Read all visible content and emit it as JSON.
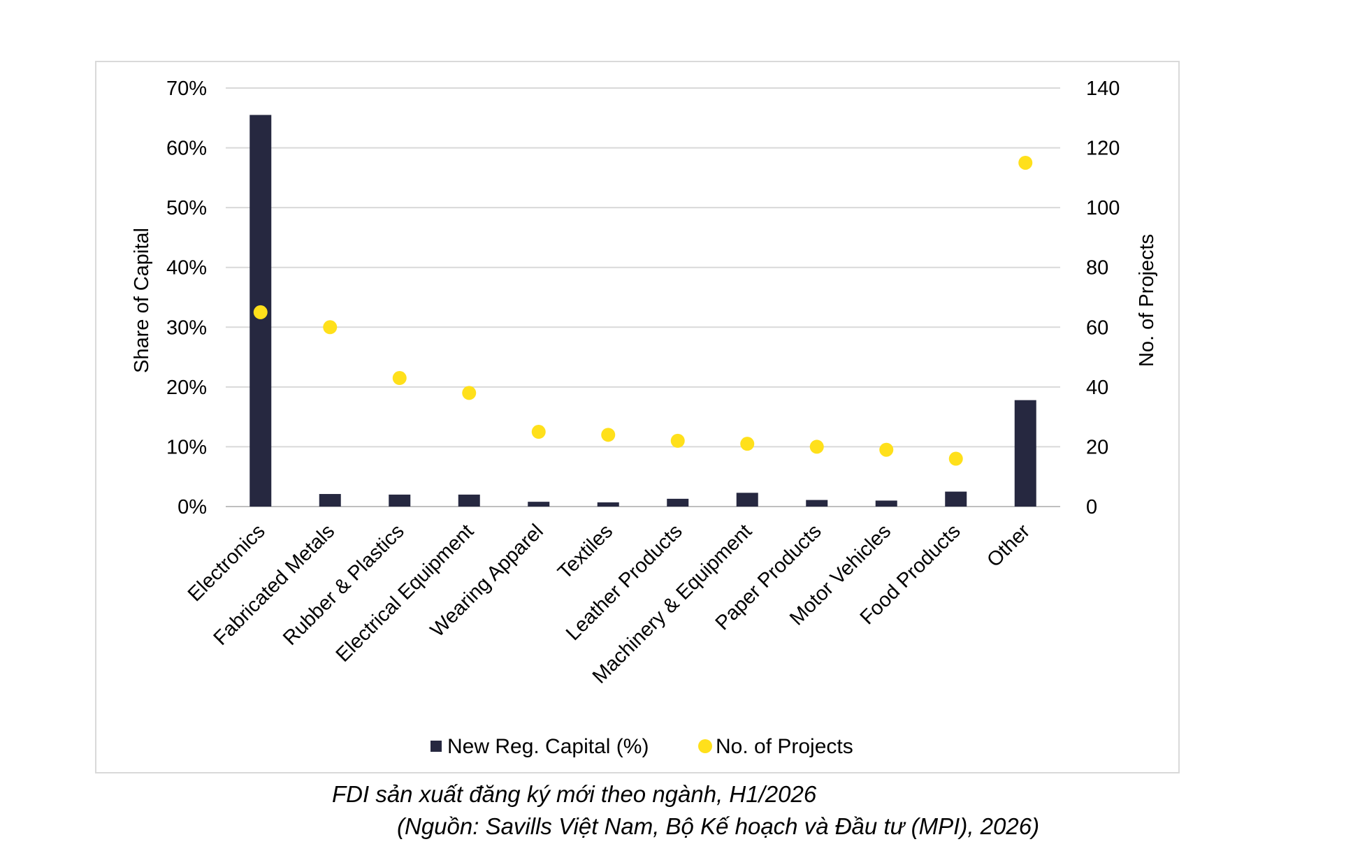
{
  "caption": {
    "title": "FDI sản xuất đăng ký mới theo ngành, H1/2026",
    "source": "(Nguồn: Savills Việt Nam, Bộ Kế hoạch và Đầu tư (MPI), 2026)"
  },
  "colors": {
    "bar": "#262840",
    "dot": "#ffe01b",
    "grid": "#d9d9d9",
    "frame": "#d9d9d9"
  },
  "chart_data": {
    "type": "bar",
    "categories": [
      "Electronics",
      "Fabricated Metals",
      "Rubber & Plastics",
      "Electrical Equipment",
      "Wearing Apparel",
      "Textiles",
      "Leather Products",
      "Machinery & Equipment",
      "Paper Products",
      "Motor Vehicles",
      "Food Products",
      "Other"
    ],
    "series": [
      {
        "name": "New Reg. Capital (%)",
        "type": "bar",
        "axis": "left",
        "values": [
          65.5,
          2.1,
          2.0,
          2.0,
          0.8,
          0.7,
          1.3,
          2.3,
          1.1,
          1.0,
          2.5,
          17.8
        ]
      },
      {
        "name": "No. of Projects",
        "type": "scatter",
        "axis": "right",
        "values": [
          65,
          60,
          43,
          38,
          25,
          24,
          22,
          21,
          20,
          19,
          16,
          115
        ]
      }
    ],
    "ylabel": "Share of Capital",
    "y2label": "No. of Projects",
    "ylim": [
      0,
      70
    ],
    "y2lim": [
      0,
      140
    ],
    "yticks": [
      "0%",
      "10%",
      "20%",
      "30%",
      "40%",
      "50%",
      "60%",
      "70%"
    ],
    "y2ticks": [
      "0",
      "20",
      "40",
      "60",
      "80",
      "100",
      "120",
      "140"
    ],
    "grid": true,
    "legend": "bottom-center"
  }
}
